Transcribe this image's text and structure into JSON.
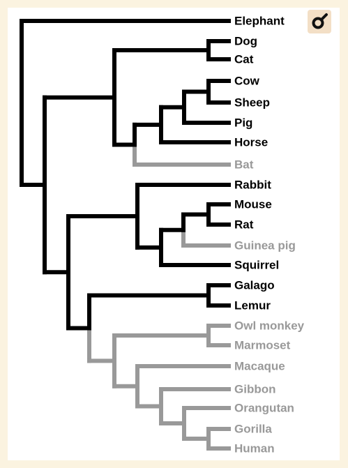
{
  "colors": {
    "background": "#fbf3e0",
    "panel": "#ffffff",
    "highlight": "#000000",
    "muted": "#999999",
    "badge": "#f3dfc6"
  },
  "badge": {
    "icon": "male-symbol-icon"
  },
  "tree": {
    "leaves": [
      {
        "id": "elephant",
        "label": "Elephant",
        "muted": false
      },
      {
        "id": "dog",
        "label": "Dog",
        "muted": false
      },
      {
        "id": "cat",
        "label": "Cat",
        "muted": false
      },
      {
        "id": "cow",
        "label": "Cow",
        "muted": false
      },
      {
        "id": "sheep",
        "label": "Sheep",
        "muted": false
      },
      {
        "id": "pig",
        "label": "Pig",
        "muted": false
      },
      {
        "id": "horse",
        "label": "Horse",
        "muted": false
      },
      {
        "id": "bat",
        "label": "Bat",
        "muted": true
      },
      {
        "id": "rabbit",
        "label": "Rabbit",
        "muted": false
      },
      {
        "id": "mouse",
        "label": "Mouse",
        "muted": false
      },
      {
        "id": "rat",
        "label": "Rat",
        "muted": false
      },
      {
        "id": "guinea-pig",
        "label": "Guinea pig",
        "muted": true
      },
      {
        "id": "squirrel",
        "label": "Squirrel",
        "muted": false
      },
      {
        "id": "galago",
        "label": "Galago",
        "muted": false
      },
      {
        "id": "lemur",
        "label": "Lemur",
        "muted": false
      },
      {
        "id": "owl-monkey",
        "label": "Owl monkey",
        "muted": true
      },
      {
        "id": "marmoset",
        "label": "Marmoset",
        "muted": true
      },
      {
        "id": "macaque",
        "label": "Macaque",
        "muted": true
      },
      {
        "id": "gibbon",
        "label": "Gibbon",
        "muted": true
      },
      {
        "id": "orangutan",
        "label": "Orangutan",
        "muted": true
      },
      {
        "id": "gorilla",
        "label": "Gorilla",
        "muted": true
      },
      {
        "id": "human",
        "label": "Human",
        "muted": true
      }
    ]
  }
}
